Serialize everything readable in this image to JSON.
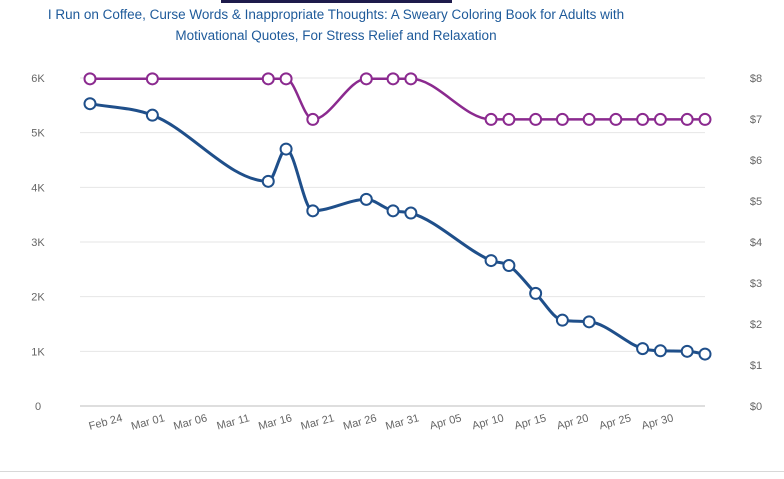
{
  "chart_data": {
    "type": "line",
    "title_lines": [
      "I Run on Coffee, Curse Words & Inappropriate Thoughts: A Sweary Coloring Book for Adults with",
      "Motivational Quotes, For Stress Relief and Relaxation"
    ],
    "x_tick_labels": [
      "Feb 24",
      "Mar 01",
      "Mar 06",
      "Mar 11",
      "Mar 16",
      "Mar 21",
      "Mar 26",
      "Mar 31",
      "Apr 05",
      "Apr 10",
      "Apr 15",
      "Apr 20",
      "Apr 25",
      "Apr 30"
    ],
    "y_left": {
      "ylim": [
        0,
        6000
      ],
      "ticks": [
        0,
        1000,
        2000,
        3000,
        4000,
        5000,
        6000
      ],
      "tick_labels": [
        "0",
        "1K",
        "2K",
        "3K",
        "4K",
        "5K",
        "6K"
      ]
    },
    "y_right": {
      "ylim": [
        0,
        8
      ],
      "ticks": [
        0,
        1,
        2,
        3,
        4,
        5,
        6,
        7,
        8
      ],
      "tick_labels": [
        "$0",
        "$1",
        "$2",
        "$3",
        "$4",
        "$5",
        "$6",
        "$7",
        "$8"
      ]
    },
    "grid": true,
    "series": [
      {
        "axis": "right",
        "color": "#8b2a8f",
        "points": [
          [
            "2024-02-24",
            7.98
          ],
          [
            "2024-03-02",
            7.98
          ],
          [
            "2024-03-15",
            7.98
          ],
          [
            "2024-03-17",
            7.98
          ],
          [
            "2024-03-20",
            6.99
          ],
          [
            "2024-03-26",
            7.98
          ],
          [
            "2024-03-29",
            7.98
          ],
          [
            "2024-03-31",
            7.98
          ],
          [
            "2024-04-09",
            6.99
          ],
          [
            "2024-04-11",
            6.99
          ],
          [
            "2024-04-14",
            6.99
          ],
          [
            "2024-04-17",
            6.99
          ],
          [
            "2024-04-20",
            6.99
          ],
          [
            "2024-04-23",
            6.99
          ],
          [
            "2024-04-26",
            6.99
          ],
          [
            "2024-04-28",
            6.99
          ],
          [
            "2024-05-01",
            6.99
          ],
          [
            "2024-05-03",
            6.99
          ]
        ]
      },
      {
        "axis": "left",
        "color": "#1f4f8a",
        "points": [
          [
            "2024-02-24",
            5530
          ],
          [
            "2024-03-02",
            5320
          ],
          [
            "2024-03-15",
            4110
          ],
          [
            "2024-03-17",
            4700
          ],
          [
            "2024-03-20",
            3570
          ],
          [
            "2024-03-26",
            3780
          ],
          [
            "2024-03-29",
            3570
          ],
          [
            "2024-03-31",
            3530
          ],
          [
            "2024-04-09",
            2660
          ],
          [
            "2024-04-11",
            2570
          ],
          [
            "2024-04-14",
            2060
          ],
          [
            "2024-04-17",
            1570
          ],
          [
            "2024-04-20",
            1540
          ],
          [
            "2024-04-26",
            1050
          ],
          [
            "2024-04-28",
            1010
          ],
          [
            "2024-05-01",
            1000
          ],
          [
            "2024-05-03",
            950
          ]
        ]
      }
    ]
  }
}
